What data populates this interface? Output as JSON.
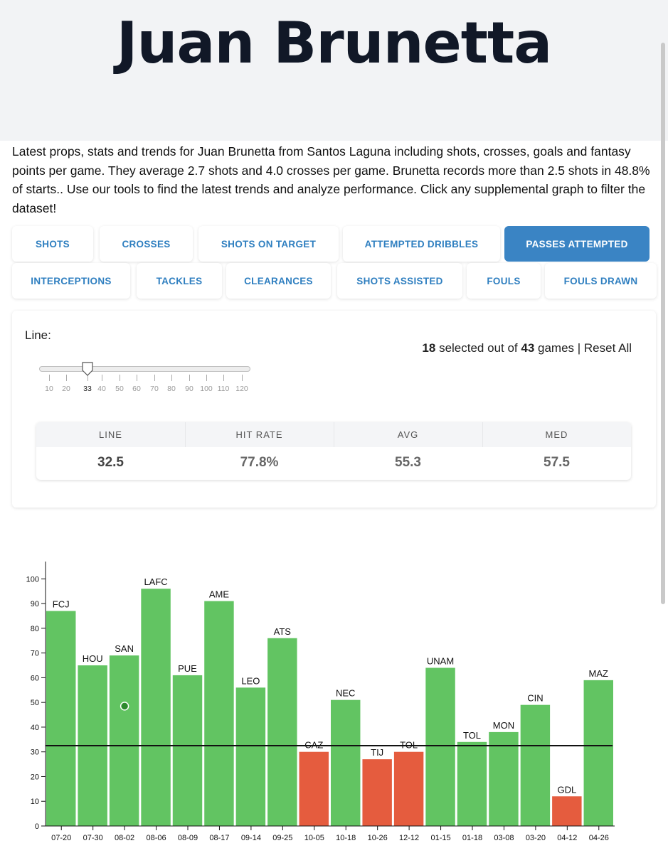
{
  "player": {
    "name": "Juan Brunetta"
  },
  "intro": "Latest props, stats and trends for Juan Brunetta from Santos Laguna including shots, crosses, goals and fantasy points per game. They average 2.7 shots and 4.0 crosses per game. Brunetta records more than 2.5 shots in 48.8% of starts.. Use our tools to find the latest trends and analyze performance. Click any supplemental graph to filter the dataset!",
  "tabs_row1": [
    {
      "label": "SHOTS",
      "active": false
    },
    {
      "label": "CROSSES",
      "active": false
    },
    {
      "label": "SHOTS ON TARGET",
      "active": false
    },
    {
      "label": "ATTEMPTED DRIBBLES",
      "active": false
    },
    {
      "label": "PASSES ATTEMPTED",
      "active": true
    }
  ],
  "tabs_row2": [
    {
      "label": "INTERCEPTIONS"
    },
    {
      "label": "TACKLES"
    },
    {
      "label": "CLEARANCES"
    },
    {
      "label": "SHOTS ASSISTED"
    },
    {
      "label": "FOULS"
    },
    {
      "label": "FOULS DRAWN"
    }
  ],
  "panel": {
    "line_label": "Line:",
    "selected": "18",
    "selected_mid": " selected out of ",
    "total": "43",
    "selected_end": " games | Reset All",
    "slider": {
      "ticks": [
        "10",
        "20",
        "33",
        "40",
        "50",
        "60",
        "70",
        "80",
        "90",
        "100",
        "110",
        "120"
      ],
      "current": "33",
      "value": 32.5,
      "min": 5,
      "max": 125
    },
    "stats": [
      {
        "label": "LINE",
        "value": "32.5"
      },
      {
        "label": "HIT RATE",
        "value": "77.8%"
      },
      {
        "label": "AVG",
        "value": "55.3"
      },
      {
        "label": "MED",
        "value": "57.5"
      }
    ]
  },
  "colors": {
    "over": "#62c462",
    "under": "#e55c3e",
    "accent": "#3a84c4",
    "tab_text": "#2f7fc0"
  },
  "chart_data": {
    "type": "bar",
    "categories": [
      "07-20",
      "07-30",
      "08-02",
      "08-06",
      "08-09",
      "08-17",
      "09-14",
      "09-25",
      "10-05",
      "10-18",
      "10-26",
      "12-12",
      "01-15",
      "01-18",
      "03-08",
      "03-20",
      "04-12",
      "04-26"
    ],
    "opponents": [
      "FCJ",
      "HOU",
      "SAN",
      "LAFC",
      "PUE",
      "AME",
      "LEO",
      "ATS",
      "CAZ",
      "NEC",
      "TIJ",
      "TOL",
      "UNAM",
      "TOL",
      "MON",
      "CIN",
      "GDL",
      "MAZ"
    ],
    "values": [
      87,
      65,
      69,
      96,
      61,
      91,
      56,
      76,
      30,
      51,
      27,
      30,
      64,
      34,
      38,
      49,
      12,
      59
    ],
    "line": 32.5,
    "marker": {
      "category": "08-02",
      "value": 48.5
    },
    "ylim": [
      0,
      107
    ],
    "yticks": [
      0,
      10,
      20,
      30,
      40,
      50,
      60,
      70,
      80,
      90,
      100
    ],
    "title": "",
    "xlabel": "",
    "ylabel": ""
  }
}
